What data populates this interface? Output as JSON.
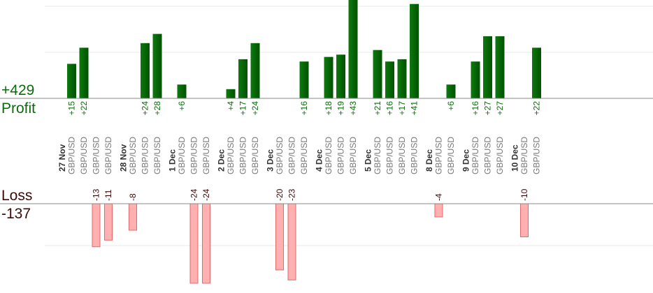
{
  "labels": {
    "profit_total": "+429",
    "profit": "Profit",
    "loss": "Loss",
    "loss_total": "-137"
  },
  "colors": {
    "profit_bar": "#0b6b0b",
    "profit_text": "#0b6b0b",
    "loss_bar": "#ffb0b0",
    "loss_border": "#e06a6a",
    "loss_text": "#3a0a0a",
    "grid": "#e8e8e8",
    "axis": "#888888",
    "date_text": "#333333",
    "pair_text": "#777777"
  },
  "chart_data": {
    "type": "bar",
    "title": "",
    "profit_total": 429,
    "loss_total": -137,
    "groups": [
      {
        "date": "27 Nov",
        "trades": [
          {
            "pair": "GBP/USD",
            "value": 15
          },
          {
            "pair": "GBP/USD",
            "value": 22
          },
          {
            "pair": "GBP/USD",
            "value": -13
          },
          {
            "pair": "GBP/USD",
            "value": -11
          }
        ]
      },
      {
        "date": "28 Nov",
        "trades": [
          {
            "pair": "GBP/USD",
            "value": -8
          },
          {
            "pair": "GBP/USD",
            "value": 24
          },
          {
            "pair": "GBP/USD",
            "value": 28
          }
        ]
      },
      {
        "date": "1 Dec",
        "trades": [
          {
            "pair": "GBP/USD",
            "value": 6
          },
          {
            "pair": "GBP/USD",
            "value": -24
          },
          {
            "pair": "GBP/USD",
            "value": -24
          }
        ]
      },
      {
        "date": "2 Dec",
        "trades": [
          {
            "pair": "GBP/USD",
            "value": 4
          },
          {
            "pair": "GBP/USD",
            "value": 17
          },
          {
            "pair": "GBP/USD",
            "value": 24
          }
        ]
      },
      {
        "date": "3 Dec",
        "trades": [
          {
            "pair": "GBP/USD",
            "value": -20
          },
          {
            "pair": "GBP/USD",
            "value": -23
          },
          {
            "pair": "GBP/USD",
            "value": 16
          }
        ]
      },
      {
        "date": "4 Dec",
        "trades": [
          {
            "pair": "GBP/USD",
            "value": 18
          },
          {
            "pair": "GBP/USD",
            "value": 19
          },
          {
            "pair": "GBP/USD",
            "value": 43
          }
        ]
      },
      {
        "date": "5 Dec",
        "trades": [
          {
            "pair": "GBP/USD",
            "value": 21
          },
          {
            "pair": "GBP/USD",
            "value": 16
          },
          {
            "pair": "GBP/USD",
            "value": 17
          },
          {
            "pair": "GBP/USD",
            "value": 41
          }
        ]
      },
      {
        "date": "8 Dec",
        "trades": [
          {
            "pair": "GBP/USD",
            "value": -4
          },
          {
            "pair": "GBP/USD",
            "value": 6
          }
        ]
      },
      {
        "date": "9 Dec",
        "trades": [
          {
            "pair": "GBP/USD",
            "value": 16
          },
          {
            "pair": "GBP/USD",
            "value": 27
          },
          {
            "pair": "GBP/USD",
            "value": 27
          }
        ]
      },
      {
        "date": "10 Dec",
        "trades": [
          {
            "pair": "GBP/USD",
            "value": -10
          },
          {
            "pair": "GBP/USD",
            "value": 22
          }
        ]
      }
    ],
    "xlabel": "",
    "ylabel": "",
    "grid": true,
    "legend": "none"
  }
}
